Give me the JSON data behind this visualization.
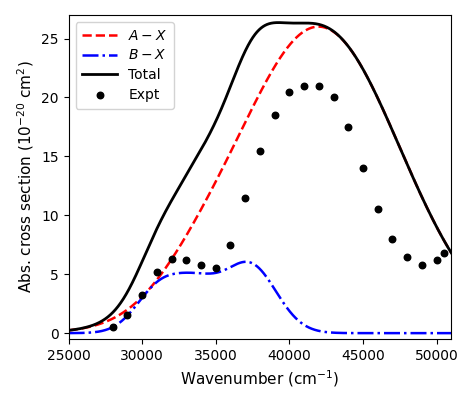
{
  "xlim": [
    25000,
    51000
  ],
  "ylim": [
    -0.5,
    27
  ],
  "xlabel": "Wavenumber (cm$^{-1}$)",
  "ylabel": "Abs. cross section (10$^{-20}$ cm$^2$)",
  "legend_entries": [
    {
      "label": "$A - X$",
      "color": "red",
      "linestyle": "--",
      "linewidth": 1.8
    },
    {
      "label": "$B - X$",
      "color": "blue",
      "linestyle": "-.",
      "linewidth": 1.8
    },
    {
      "label": "Total",
      "color": "black",
      "linestyle": "-",
      "linewidth": 2.0
    },
    {
      "label": "Expt",
      "color": "black",
      "marker": "o",
      "markersize": 5
    }
  ],
  "figsize": [
    4.74,
    4.04
  ],
  "dpi": 100,
  "xticks": [
    25000,
    30000,
    35000,
    40000,
    45000,
    50000
  ],
  "yticks": [
    0,
    5,
    10,
    15,
    20,
    25
  ],
  "expt_x": [
    28000,
    29000,
    30000,
    31000,
    32000,
    33000,
    34000,
    35000,
    36000,
    37000,
    38000,
    39000,
    40000,
    41000,
    42000,
    43000,
    44000,
    45000,
    46000,
    47000,
    48000,
    49000,
    50000,
    50500
  ],
  "expt_y": [
    0.5,
    1.5,
    3.2,
    5.2,
    6.3,
    6.2,
    5.8,
    5.5,
    7.5,
    11.5,
    15.5,
    18.5,
    20.5,
    21.0,
    21.0,
    20.0,
    17.5,
    14.0,
    10.5,
    8.0,
    6.5,
    5.8,
    6.2,
    6.8
  ]
}
